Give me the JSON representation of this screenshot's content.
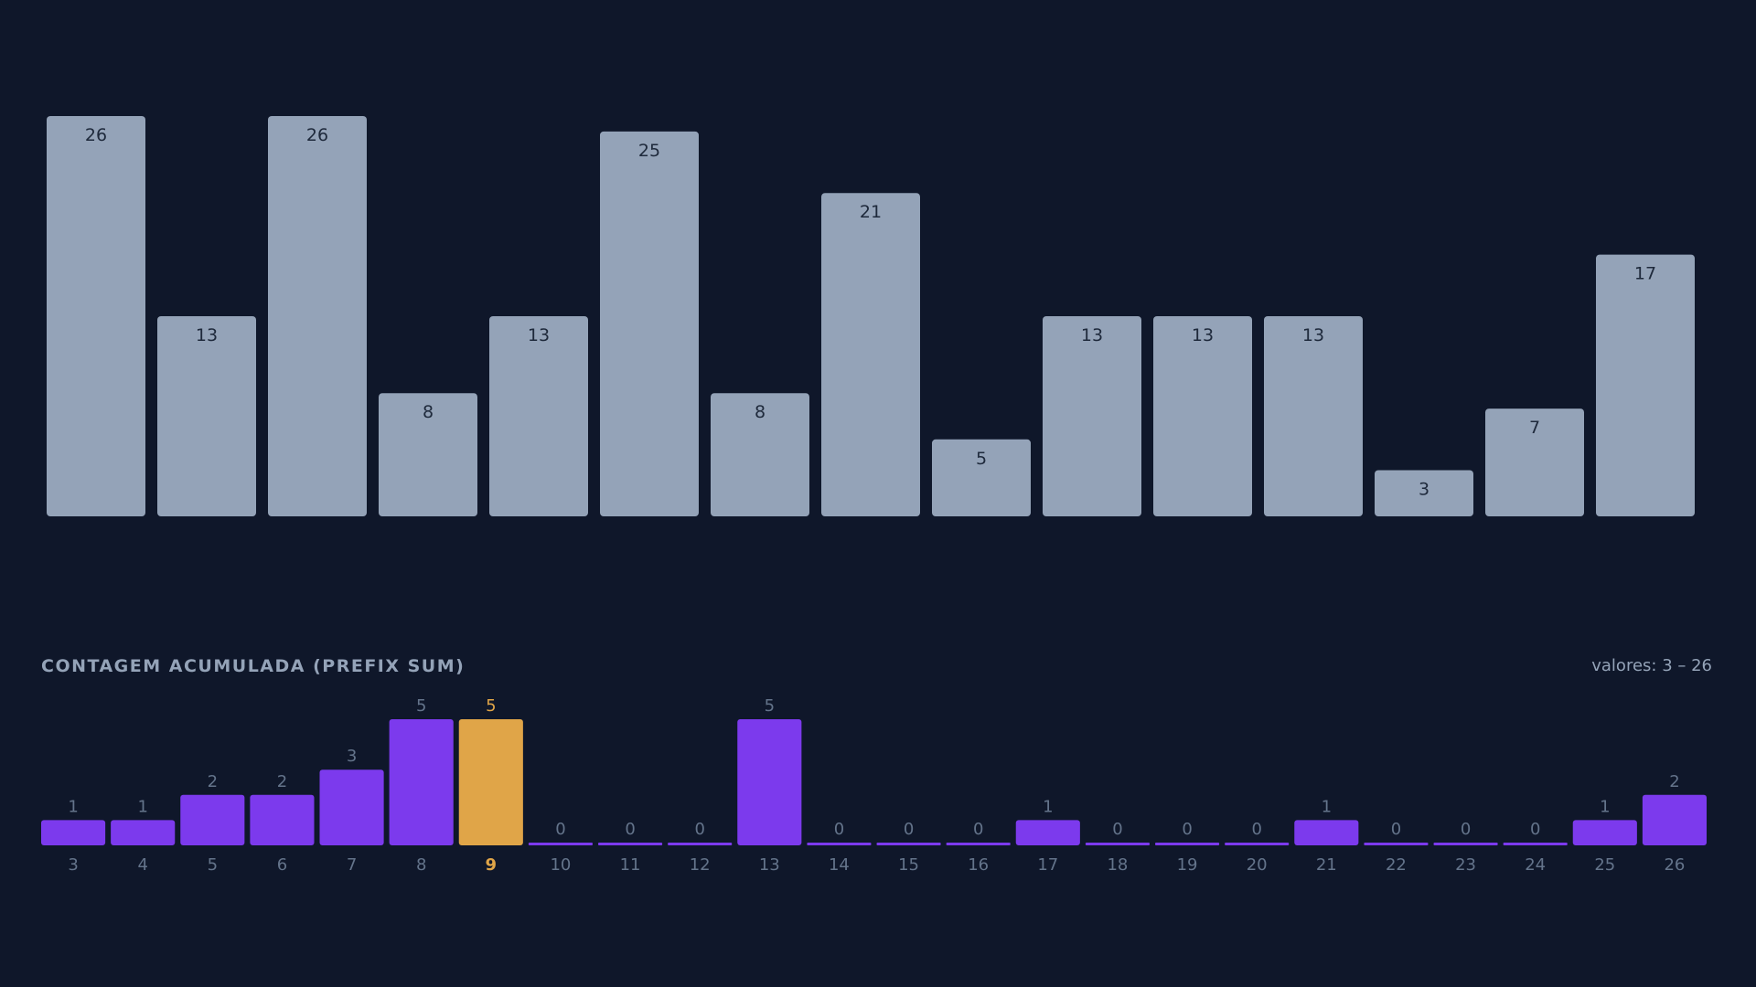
{
  "chart_data": [
    {
      "type": "bar",
      "values": [
        26,
        13,
        26,
        8,
        13,
        25,
        8,
        21,
        5,
        13,
        13,
        13,
        3,
        7,
        17
      ],
      "data_labels": [
        "26",
        "13",
        "26",
        "8",
        "13",
        "25",
        "8",
        "21",
        "5",
        "13",
        "13",
        "13",
        "3",
        "7",
        "17"
      ],
      "ylim": [
        0,
        26
      ],
      "grid": false,
      "legend": "none"
    },
    {
      "type": "bar",
      "title": "CONTAGEM ACUMULADA (PREFIX SUM)",
      "subtitle": "valores: 3 – 26",
      "categories": [
        "3",
        "4",
        "5",
        "6",
        "7",
        "8",
        "9",
        "10",
        "11",
        "12",
        "13",
        "14",
        "15",
        "16",
        "17",
        "18",
        "19",
        "20",
        "21",
        "22",
        "23",
        "24",
        "25",
        "26"
      ],
      "values": [
        1,
        1,
        2,
        2,
        3,
        5,
        5,
        0,
        0,
        0,
        5,
        0,
        0,
        0,
        1,
        0,
        0,
        0,
        1,
        0,
        0,
        0,
        1,
        2
      ],
      "data_labels": [
        "1",
        "1",
        "2",
        "2",
        "3",
        "5",
        "5",
        "0",
        "0",
        "0",
        "5",
        "0",
        "0",
        "0",
        "1",
        "0",
        "0",
        "0",
        "1",
        "0",
        "0",
        "0",
        "1",
        "2"
      ],
      "highlight_category": "9",
      "ylim": [
        0,
        5
      ],
      "grid": false,
      "legend": "none"
    }
  ],
  "colors": {
    "background": "#0f172a",
    "main_bar": "#94a3b8",
    "main_label": "#1e293b",
    "count_bar": "#7c3aed",
    "highlight_bar": "#e0a548",
    "muted_text": "#64748b",
    "title_text": "#94a3b8"
  }
}
